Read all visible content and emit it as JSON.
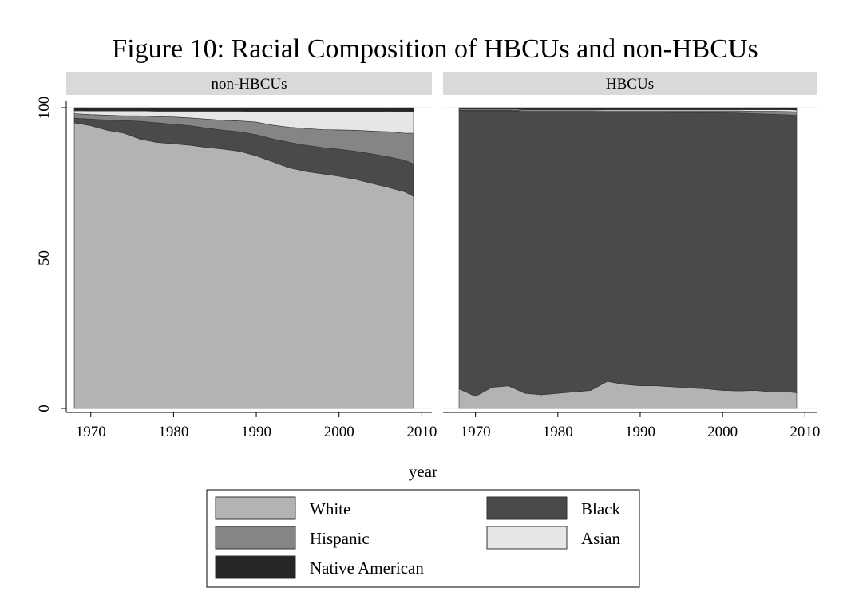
{
  "title": "Figure 10: Racial Composition of HBCUs and non-HBCUs",
  "colors": {
    "white": "#b3b3b3",
    "black": "#4a4a4a",
    "hispanic": "#858585",
    "asian": "#e6e6e6",
    "native_american": "#262626",
    "strip": "#d9d9d9",
    "grid": "#eaeaea"
  },
  "chart_data": {
    "type": "area",
    "stacked": true,
    "xlabel": "year",
    "ylabel": "",
    "xlim": [
      1967,
      2011
    ],
    "ylim": [
      0,
      100
    ],
    "xticks": [
      "1970",
      "1980",
      "1990",
      "2000",
      "2010"
    ],
    "yticks": [
      "0",
      "50",
      "100"
    ],
    "grid": true,
    "legend_position": "bottom",
    "legend": [
      {
        "key": "white",
        "label": "White"
      },
      {
        "key": "black",
        "label": "Black"
      },
      {
        "key": "hispanic",
        "label": "Hispanic"
      },
      {
        "key": "asian",
        "label": "Asian"
      },
      {
        "key": "native_american",
        "label": "Native American"
      }
    ],
    "panels": [
      {
        "label": "non-HBCUs",
        "x": [
          1968,
          1970,
          1972,
          1974,
          1976,
          1978,
          1980,
          1982,
          1984,
          1986,
          1988,
          1990,
          1992,
          1994,
          1996,
          1998,
          2000,
          2002,
          2004,
          2006,
          2008,
          2009
        ],
        "series": [
          {
            "key": "white",
            "values": [
              95.0,
              94.0,
              92.5,
              91.5,
              89.5,
              88.5,
              88.0,
              87.5,
              86.8,
              86.2,
              85.5,
              84.0,
              82.0,
              80.0,
              78.8,
              78.0,
              77.2,
              76.2,
              74.8,
              73.5,
              72.0,
              70.5
            ]
          },
          {
            "key": "black",
            "values": [
              1.5,
              2.2,
              3.4,
              4.2,
              6.0,
              6.5,
              6.5,
              6.5,
              6.4,
              6.3,
              6.5,
              7.0,
              7.6,
              8.5,
              8.7,
              8.7,
              9.0,
              9.3,
              9.8,
              10.2,
              10.5,
              10.8
            ]
          },
          {
            "key": "hispanic",
            "values": [
              1.5,
              1.5,
              1.6,
              1.6,
              1.8,
              2.0,
              2.4,
              2.6,
              3.0,
              3.3,
              3.6,
              4.2,
              4.6,
              5.0,
              5.6,
              6.0,
              6.4,
              7.0,
              7.6,
              8.3,
              9.0,
              10.2
            ]
          },
          {
            "key": "asian",
            "values": [
              1.0,
              1.2,
              1.4,
              1.6,
              1.6,
              1.8,
              1.9,
              2.2,
              2.6,
              3.0,
              3.2,
              3.5,
              4.5,
              5.2,
              5.6,
              6.0,
              6.1,
              6.2,
              6.5,
              6.8,
              7.2,
              7.2
            ]
          },
          {
            "key": "native_american",
            "values": [
              1.0,
              1.1,
              1.1,
              1.1,
              1.1,
              1.2,
              1.2,
              1.2,
              1.2,
              1.2,
              1.2,
              1.3,
              1.3,
              1.3,
              1.3,
              1.3,
              1.3,
              1.3,
              1.3,
              1.2,
              1.3,
              1.3
            ]
          }
        ]
      },
      {
        "label": "HBCUs",
        "x": [
          1968,
          1970,
          1972,
          1974,
          1976,
          1978,
          1980,
          1982,
          1984,
          1986,
          1988,
          1990,
          1992,
          1994,
          1996,
          1998,
          2000,
          2002,
          2004,
          2006,
          2008,
          2009
        ],
        "series": [
          {
            "key": "white",
            "values": [
              6.5,
              4.0,
              7.0,
              7.5,
              5.0,
              4.5,
              5.0,
              5.5,
              6.0,
              9.0,
              8.0,
              7.5,
              7.5,
              7.2,
              6.8,
              6.5,
              6.0,
              5.8,
              6.0,
              5.5,
              5.5,
              5.2
            ]
          },
          {
            "key": "black",
            "values": [
              92.5,
              95.0,
              92.0,
              91.5,
              93.7,
              94.2,
              93.7,
              93.2,
              92.7,
              89.5,
              90.5,
              91.0,
              91.0,
              91.2,
              91.6,
              91.8,
              92.3,
              92.4,
              92.0,
              92.3,
              92.1,
              92.2
            ]
          },
          {
            "key": "hispanic",
            "values": [
              0.2,
              0.2,
              0.2,
              0.2,
              0.3,
              0.3,
              0.3,
              0.3,
              0.3,
              0.4,
              0.4,
              0.4,
              0.4,
              0.5,
              0.5,
              0.6,
              0.6,
              0.7,
              0.8,
              1.0,
              1.1,
              1.2
            ]
          },
          {
            "key": "asian",
            "values": [
              0.3,
              0.3,
              0.3,
              0.3,
              0.3,
              0.3,
              0.3,
              0.3,
              0.3,
              0.4,
              0.4,
              0.4,
              0.4,
              0.4,
              0.4,
              0.4,
              0.4,
              0.4,
              0.5,
              0.5,
              0.6,
              0.6
            ]
          },
          {
            "key": "native_american",
            "values": [
              0.5,
              0.5,
              0.5,
              0.5,
              0.7,
              0.7,
              0.7,
              0.7,
              0.7,
              0.7,
              0.7,
              0.7,
              0.7,
              0.7,
              0.7,
              0.7,
              0.7,
              0.7,
              0.7,
              0.7,
              0.7,
              0.8
            ]
          }
        ]
      }
    ]
  }
}
